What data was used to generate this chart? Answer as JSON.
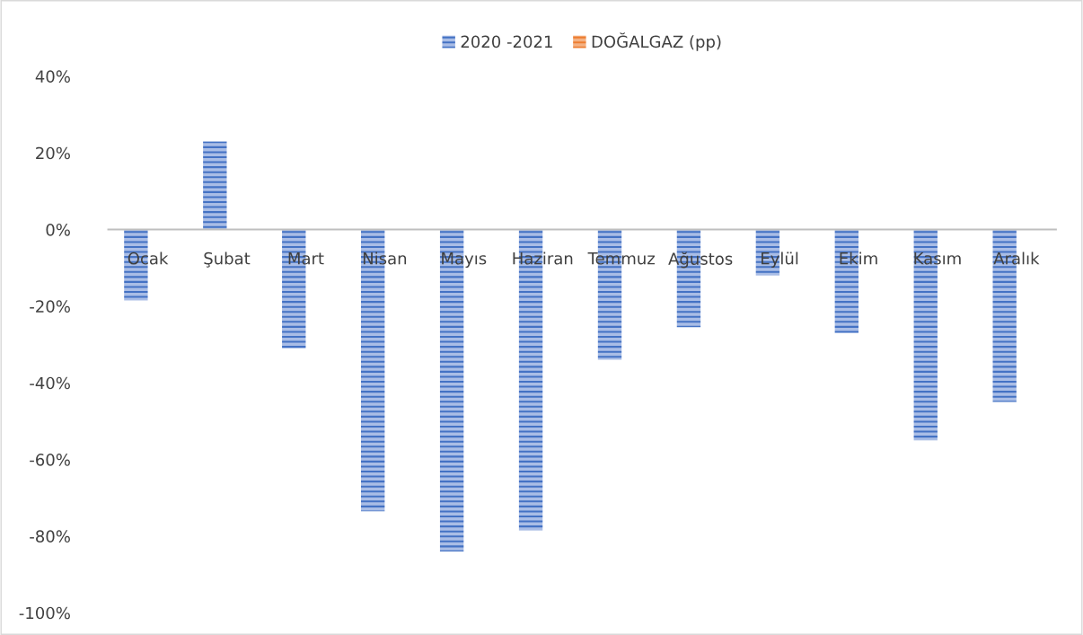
{
  "chart_data": {
    "type": "bar",
    "categories": [
      "Ocak",
      "Şubat",
      "Mart",
      "Nisan",
      "Mayıs",
      "Haziran",
      "Temmuz",
      "Ağustos",
      "Eylül",
      "Ekim",
      "Kasım",
      "Aralık"
    ],
    "series": [
      {
        "name": "2020 -2021",
        "color": "#4472c4",
        "values": [
          -18.5,
          23,
          -31,
          -73.5,
          -84,
          -78.5,
          -34,
          -25.5,
          -12,
          -27,
          -55,
          -45
        ]
      },
      {
        "name": "DOĞALGAZ (pp)",
        "color": "#ed7d31",
        "values": [
          null,
          null,
          null,
          null,
          null,
          null,
          null,
          null,
          null,
          null,
          null,
          null
        ]
      }
    ],
    "ylim": [
      -100,
      40
    ],
    "yticks": [
      {
        "value": -100,
        "label": "-100%"
      },
      {
        "value": -80,
        "label": "-80%"
      },
      {
        "value": -60,
        "label": "-60%"
      },
      {
        "value": -40,
        "label": "-40%"
      },
      {
        "value": -20,
        "label": "-20%"
      },
      {
        "value": 0,
        "label": "0%"
      },
      {
        "value": 20,
        "label": "20%"
      },
      {
        "value": 40,
        "label": "40%"
      }
    ],
    "grid": false,
    "legend": "top"
  }
}
